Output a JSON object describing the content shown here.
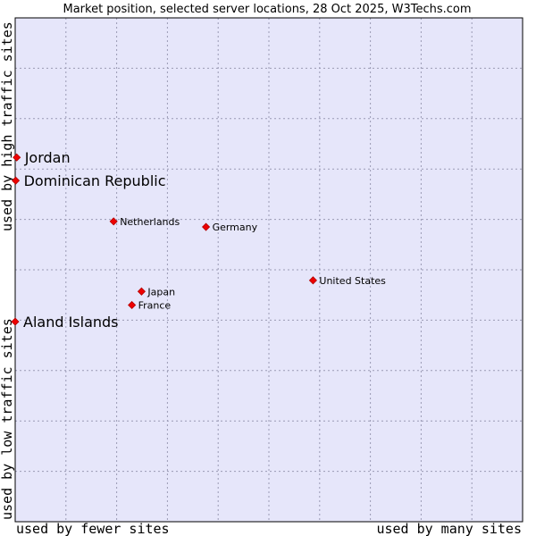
{
  "chart_data": {
    "type": "scatter",
    "title": "Market position, selected server locations, 28 Oct 2025, W3Techs.com",
    "xlabel_left": "used by fewer sites",
    "xlabel_right": "used by many sites",
    "ylabel_top": "used by high traffic sites",
    "ylabel_bottom": "used by low traffic sites",
    "xlim": [
      0,
      100
    ],
    "ylim": [
      0,
      100
    ],
    "grid": true,
    "colors": {
      "background": "#e6e6fa",
      "point": "#ee0000",
      "border": "#000000",
      "grid": "#9a9ab4"
    },
    "points": [
      {
        "label": "Jordan",
        "x": 0.3,
        "y": 72.3,
        "size": "large"
      },
      {
        "label": "Dominican Republic",
        "x": 0.1,
        "y": 67.7,
        "size": "large"
      },
      {
        "label": "Netherlands",
        "x": 19.4,
        "y": 59.6,
        "size": "small"
      },
      {
        "label": "Germany",
        "x": 37.6,
        "y": 58.5,
        "size": "small"
      },
      {
        "label": "United States",
        "x": 58.7,
        "y": 47.9,
        "size": "small"
      },
      {
        "label": "Japan",
        "x": 24.9,
        "y": 45.7,
        "size": "small"
      },
      {
        "label": "France",
        "x": 23.0,
        "y": 43.0,
        "size": "small"
      },
      {
        "label": "Aland Islands",
        "x": 0.0,
        "y": 39.7,
        "size": "large"
      }
    ]
  }
}
